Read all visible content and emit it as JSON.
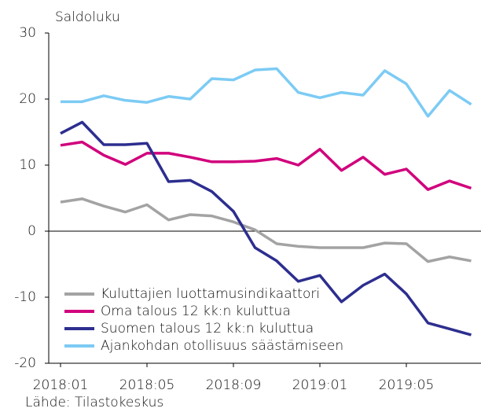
{
  "chart_data": {
    "type": "line",
    "ylabel": "Saldoluku",
    "source": "Lähde: Tilastokeskus",
    "categories": [
      "2018:01",
      null,
      null,
      null,
      "2018:05",
      null,
      null,
      null,
      "2018:09",
      null,
      null,
      null,
      "2019:01",
      null,
      null,
      null,
      "2019:05",
      null,
      null,
      null
    ],
    "series": [
      {
        "name": "Kuluttajien luottamusindikaattori",
        "color": "#a3a3a3",
        "values": [
          4.4,
          4.9,
          3.8,
          2.9,
          4.0,
          1.7,
          2.5,
          2.3,
          1.4,
          0.2,
          -1.9,
          -2.3,
          -2.5,
          -2.5,
          -2.5,
          -1.8,
          -1.9,
          -4.6,
          -3.9,
          -4.5
        ]
      },
      {
        "name": "Oma talous 12 kk:n kuluttua",
        "color": "#d1007c",
        "values": [
          13.0,
          13.5,
          11.5,
          10.1,
          11.8,
          11.8,
          11.2,
          10.5,
          10.5,
          10.6,
          11.0,
          10.0,
          12.4,
          9.2,
          11.2,
          8.6,
          9.4,
          6.3,
          7.6,
          6.5
        ]
      },
      {
        "name": "Suomen talous 12 kk:n kuluttua",
        "color": "#2d2e8f",
        "values": [
          14.8,
          16.5,
          13.1,
          13.1,
          13.3,
          7.5,
          7.7,
          6.0,
          3.0,
          -2.5,
          -4.5,
          -7.6,
          -6.7,
          -10.7,
          -8.2,
          -6.5,
          -9.5,
          -13.9,
          -14.8,
          -15.7
        ]
      },
      {
        "name": "Ajankohdan otollisuus säästämiseen",
        "color": "#7ccbf4",
        "values": [
          19.6,
          19.6,
          20.5,
          19.8,
          19.5,
          20.4,
          20.0,
          23.1,
          22.9,
          24.4,
          24.6,
          21.0,
          20.2,
          21.0,
          20.6,
          24.3,
          22.3,
          17.4,
          21.3,
          19.2
        ]
      }
    ],
    "ylim": [
      -20,
      30
    ],
    "yticks": [
      -20,
      -10,
      0,
      10,
      20,
      30
    ],
    "grid": false,
    "legend": "lower left"
  }
}
